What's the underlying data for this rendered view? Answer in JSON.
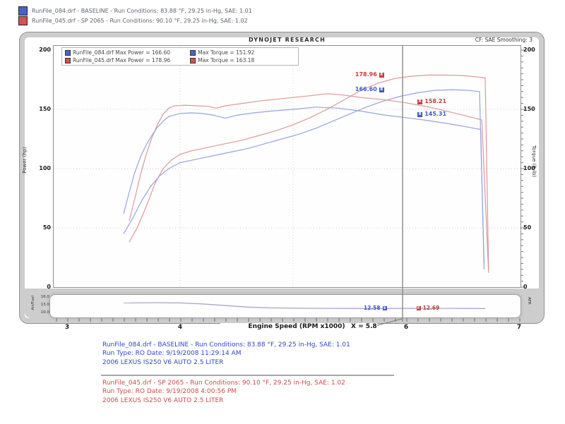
{
  "header": {
    "runs": [
      {
        "swatch": "#4a63c8",
        "text": "RunFile_084.drf - BASELINE  -  Run Conditions: 83.88 °F, 29.25 in-Hg, SAE: 1.01"
      },
      {
        "swatch": "#d05252",
        "text": "RunFile_045.drf - SP 2065  -  Run Conditions: 90.10 °F, 29.25 in-Hg, SAE: 1.02"
      }
    ]
  },
  "chart_title": "DYNOJET RESEARCH",
  "smoothing_label": "CF: SAE   Smoothing: 3",
  "legend": {
    "rows": [
      {
        "color": "#4a63c8",
        "file": "RunFile_084.drf",
        "power": "Max Power = 166.60",
        "torque": "Max Torque = 151.92"
      },
      {
        "color": "#d05252",
        "file": "RunFile_045.drf",
        "power": "Max Power = 178.96",
        "torque": "Max Torque = 163.18"
      }
    ]
  },
  "chart_data": {
    "type": "line",
    "title": "DYNOJET RESEARCH",
    "xlabel": "Engine Speed (RPM x1000)",
    "ylabel_left": "Power (hp)",
    "ylabel_right": "Torque (ft-lb)",
    "xlim": [
      3,
      7
    ],
    "ylim": [
      0,
      200
    ],
    "x_ticks": [
      3,
      4,
      5,
      6,
      7
    ],
    "y_ticks": [
      200,
      150,
      100,
      50,
      0
    ],
    "grid": "dotted pink at major ticks",
    "legend_position": "top-left inside plot",
    "cursor": {
      "x": 5.8,
      "label": "X = 5.8"
    },
    "peaks": {
      "baseline": {
        "max_power": 166.6,
        "max_torque": 151.92
      },
      "sp2065": {
        "max_power": 178.96,
        "max_torque": 163.18
      }
    },
    "series": [
      {
        "name": "sp2065-power",
        "label": "SP 2065 Power (hp)",
        "color": "#dc9898",
        "points": [
          [
            3.55,
            38
          ],
          [
            3.62,
            50
          ],
          [
            3.7,
            68
          ],
          [
            3.78,
            88
          ],
          [
            3.85,
            100
          ],
          [
            3.92,
            107
          ],
          [
            4.0,
            112
          ],
          [
            4.1,
            115
          ],
          [
            4.25,
            118
          ],
          [
            4.4,
            121
          ],
          [
            4.55,
            124
          ],
          [
            4.7,
            128
          ],
          [
            4.85,
            132
          ],
          [
            5.0,
            137
          ],
          [
            5.15,
            143
          ],
          [
            5.3,
            150
          ],
          [
            5.45,
            158
          ],
          [
            5.6,
            166
          ],
          [
            5.75,
            172
          ],
          [
            5.9,
            176
          ],
          [
            6.05,
            178
          ],
          [
            6.2,
            178.9
          ],
          [
            6.35,
            179
          ],
          [
            6.5,
            178.5
          ],
          [
            6.62,
            177.5
          ],
          [
            6.7,
            176.5
          ],
          [
            6.73,
            15
          ]
        ]
      },
      {
        "name": "baseline-power",
        "label": "BASELINE Power (hp)",
        "color": "#94a5db",
        "points": [
          [
            3.5,
            45
          ],
          [
            3.58,
            58
          ],
          [
            3.66,
            73
          ],
          [
            3.74,
            85
          ],
          [
            3.82,
            94
          ],
          [
            3.9,
            100
          ],
          [
            4.0,
            105
          ],
          [
            4.15,
            108
          ],
          [
            4.3,
            111
          ],
          [
            4.45,
            114
          ],
          [
            4.6,
            117
          ],
          [
            4.75,
            121
          ],
          [
            4.9,
            125
          ],
          [
            5.05,
            129
          ],
          [
            5.2,
            134
          ],
          [
            5.35,
            140
          ],
          [
            5.5,
            146
          ],
          [
            5.65,
            152
          ],
          [
            5.8,
            157
          ],
          [
            5.95,
            161
          ],
          [
            6.1,
            164
          ],
          [
            6.25,
            166
          ],
          [
            6.4,
            166.6
          ],
          [
            6.55,
            166
          ],
          [
            6.65,
            165
          ],
          [
            6.69,
            20
          ]
        ]
      },
      {
        "name": "sp2065-torque",
        "label": "SP 2065 Torque (ft-lb)",
        "color": "#dc9898",
        "points": [
          [
            3.55,
            56
          ],
          [
            3.6,
            75
          ],
          [
            3.65,
            95
          ],
          [
            3.7,
            112
          ],
          [
            3.75,
            126
          ],
          [
            3.8,
            137
          ],
          [
            3.85,
            146
          ],
          [
            3.9,
            151
          ],
          [
            3.95,
            153
          ],
          [
            4.05,
            153.5
          ],
          [
            4.15,
            153
          ],
          [
            4.25,
            152.5
          ],
          [
            4.32,
            151
          ],
          [
            4.4,
            153
          ],
          [
            4.55,
            155
          ],
          [
            4.7,
            157
          ],
          [
            4.85,
            158.5
          ],
          [
            5.0,
            160
          ],
          [
            5.15,
            161.5
          ],
          [
            5.3,
            163.2
          ],
          [
            5.45,
            162
          ],
          [
            5.6,
            160
          ],
          [
            5.8,
            158.2
          ],
          [
            6.0,
            155.5
          ],
          [
            6.2,
            152
          ],
          [
            6.4,
            147.5
          ],
          [
            6.55,
            144
          ],
          [
            6.67,
            141
          ],
          [
            6.73,
            12
          ]
        ]
      },
      {
        "name": "baseline-torque",
        "label": "BASELINE Torque (ft-lb)",
        "color": "#94a5db",
        "points": [
          [
            3.5,
            62
          ],
          [
            3.55,
            80
          ],
          [
            3.6,
            97
          ],
          [
            3.65,
            110
          ],
          [
            3.7,
            120
          ],
          [
            3.75,
            128
          ],
          [
            3.8,
            135
          ],
          [
            3.85,
            140
          ],
          [
            3.9,
            144
          ],
          [
            4.0,
            146.5
          ],
          [
            4.1,
            147
          ],
          [
            4.2,
            146.5
          ],
          [
            4.3,
            145
          ],
          [
            4.4,
            142.5
          ],
          [
            4.5,
            145
          ],
          [
            4.65,
            147
          ],
          [
            4.8,
            148.5
          ],
          [
            5.0,
            150
          ],
          [
            5.2,
            151.9
          ],
          [
            5.4,
            151
          ],
          [
            5.6,
            148.5
          ],
          [
            5.8,
            145.3
          ],
          [
            6.0,
            143
          ],
          [
            6.2,
            140.5
          ],
          [
            6.4,
            137.5
          ],
          [
            6.55,
            135
          ],
          [
            6.66,
            133
          ],
          [
            6.69,
            15
          ]
        ]
      }
    ],
    "afr_series": [
      {
        "name": "sp2065-afr",
        "label": "SP 2065 Air/Fuel",
        "color": "#d9a0a0",
        "points": [
          [
            3.55,
            14.4
          ],
          [
            3.8,
            14.5
          ],
          [
            4.0,
            14.4
          ],
          [
            4.2,
            14.1
          ],
          [
            4.4,
            13.6
          ],
          [
            4.6,
            13.1
          ],
          [
            4.8,
            12.85
          ],
          [
            5.0,
            12.75
          ],
          [
            5.3,
            12.7
          ],
          [
            5.6,
            12.69
          ],
          [
            5.9,
            12.69
          ],
          [
            6.2,
            12.7
          ],
          [
            6.5,
            12.68
          ],
          [
            6.7,
            12.65
          ]
        ]
      },
      {
        "name": "baseline-afr",
        "label": "BASELINE Air/Fuel",
        "color": "#9aa8d6",
        "points": [
          [
            3.5,
            14.3
          ],
          [
            3.8,
            14.4
          ],
          [
            4.0,
            14.3
          ],
          [
            4.2,
            14.0
          ],
          [
            4.4,
            13.5
          ],
          [
            4.6,
            13.0
          ],
          [
            4.8,
            12.75
          ],
          [
            5.0,
            12.65
          ],
          [
            5.3,
            12.6
          ],
          [
            5.6,
            12.58
          ],
          [
            5.9,
            12.58
          ],
          [
            6.2,
            12.6
          ],
          [
            6.5,
            12.58
          ],
          [
            6.7,
            12.55
          ]
        ]
      }
    ],
    "point_labels": [
      {
        "text": "178.96",
        "marker": "R",
        "color": "#c83c3c",
        "rpm": 5.78,
        "value": 179.0,
        "side": "left"
      },
      {
        "text": "166.60",
        "marker": "B",
        "color": "#4059c8",
        "rpm": 5.78,
        "value": 166.6,
        "side": "left"
      },
      {
        "text": "158.21",
        "marker": "R",
        "color": "#c83c3c",
        "rpm": 6.12,
        "value": 156.5,
        "side": "right"
      },
      {
        "text": "145.31",
        "marker": "B",
        "color": "#4059c8",
        "rpm": 6.12,
        "value": 146.0,
        "side": "right"
      }
    ]
  },
  "afr_strip": {
    "label_left": "Air/Fuel",
    "ticks": [
      "16.0",
      "13.0",
      "10.0"
    ],
    "label_right": "AFR",
    "readouts": [
      {
        "text": "12.58",
        "marker": "B",
        "color": "#4059c8",
        "rpm": 5.81,
        "value": 12.58,
        "side": "left"
      },
      {
        "text": "12.69",
        "marker": "R",
        "color": "#c83c3c",
        "rpm": 6.11,
        "value": 12.69,
        "side": "right"
      }
    ]
  },
  "footer": {
    "xlabel": "Engine Speed (RPM x1000)",
    "cursor_label": "X = 5.8",
    "blocks": [
      {
        "color": "#3246c8",
        "lines": [
          "RunFile_084.drf - BASELINE  -  Run Conditions: 83.88 °F, 29.25 in-Hg, SAE: 1.01",
          "Run Type: RO  Date: 9/19/2008 11:29:14 AM",
          "2006 LEXUS IS250 V6 AUTO 2.5 LITER"
        ]
      },
      {
        "color": "#cf4a4a",
        "lines": [
          "RunFile_045.drf - SP 2065  -  Run Conditions: 90.10 °F, 29.25 in-Hg, SAE: 1.02",
          "Run Type: RO  Date: 9/19/2008 4:00:56 PM",
          "2006 LEXUS IS250 V6 AUTO 2.5 LITER"
        ]
      }
    ]
  }
}
